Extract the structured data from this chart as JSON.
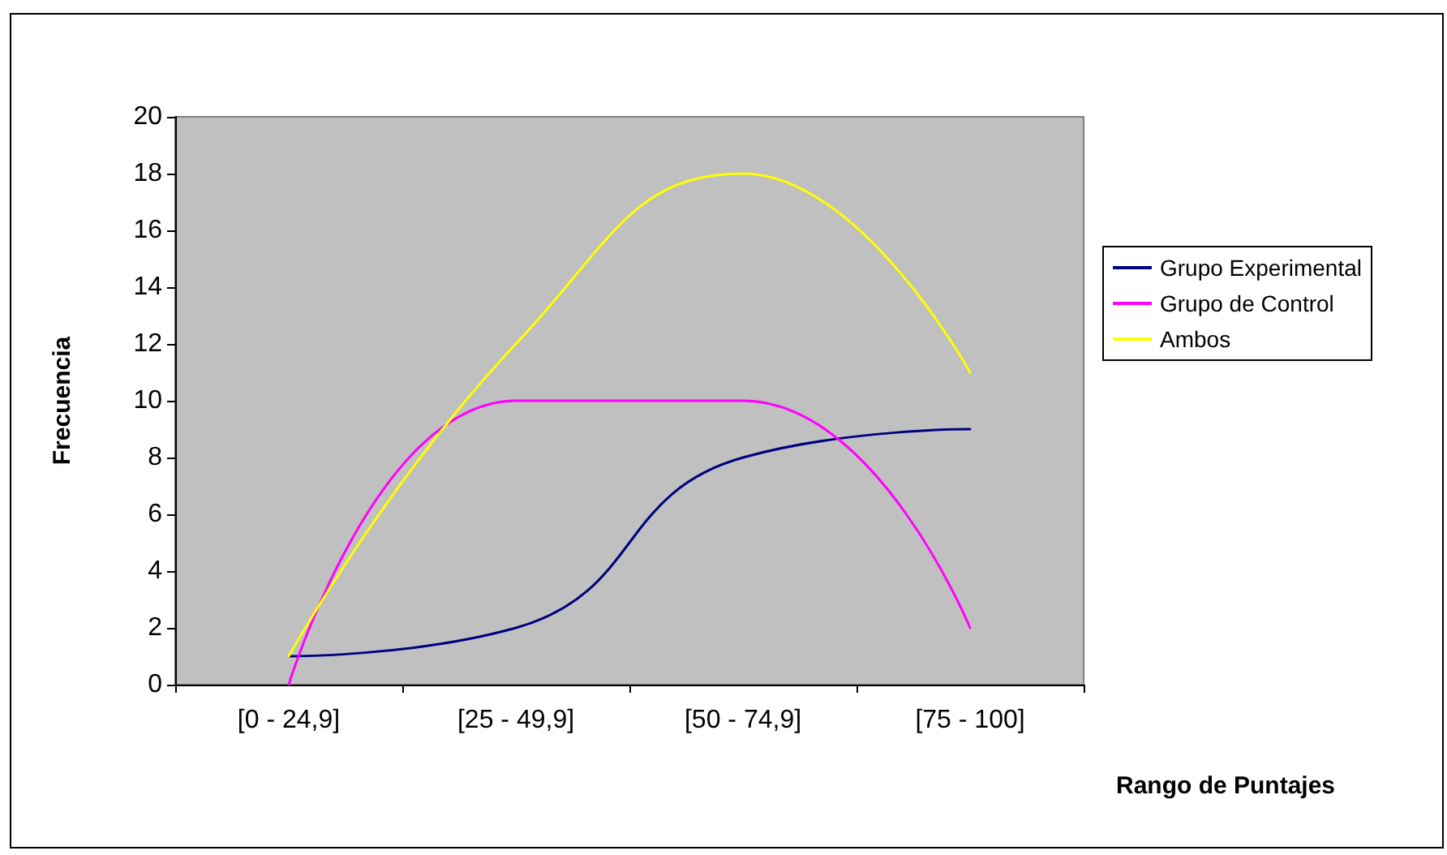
{
  "chart_data": {
    "type": "line",
    "categories": [
      "[0 - 24,9]",
      "[25 - 49,9]",
      "[50 - 74,9]",
      "[75 - 100]"
    ],
    "series": [
      {
        "name": "Grupo Experimental",
        "color": "#000080",
        "values": [
          1,
          2,
          8,
          9
        ]
      },
      {
        "name": "Grupo de Control",
        "color": "#ff00ff",
        "values": [
          0,
          10,
          10,
          2
        ]
      },
      {
        "name": "Ambos",
        "color": "#ffff00",
        "values": [
          1,
          12,
          18,
          11
        ]
      }
    ],
    "xlabel": "Rango de Puntajes",
    "ylabel": "Frecuencia",
    "ylim": [
      0,
      20
    ],
    "yticks": [
      0,
      2,
      4,
      6,
      8,
      10,
      12,
      14,
      16,
      18,
      20
    ],
    "grid": false,
    "legend": "right",
    "marker": "none",
    "line_style": "solid"
  }
}
